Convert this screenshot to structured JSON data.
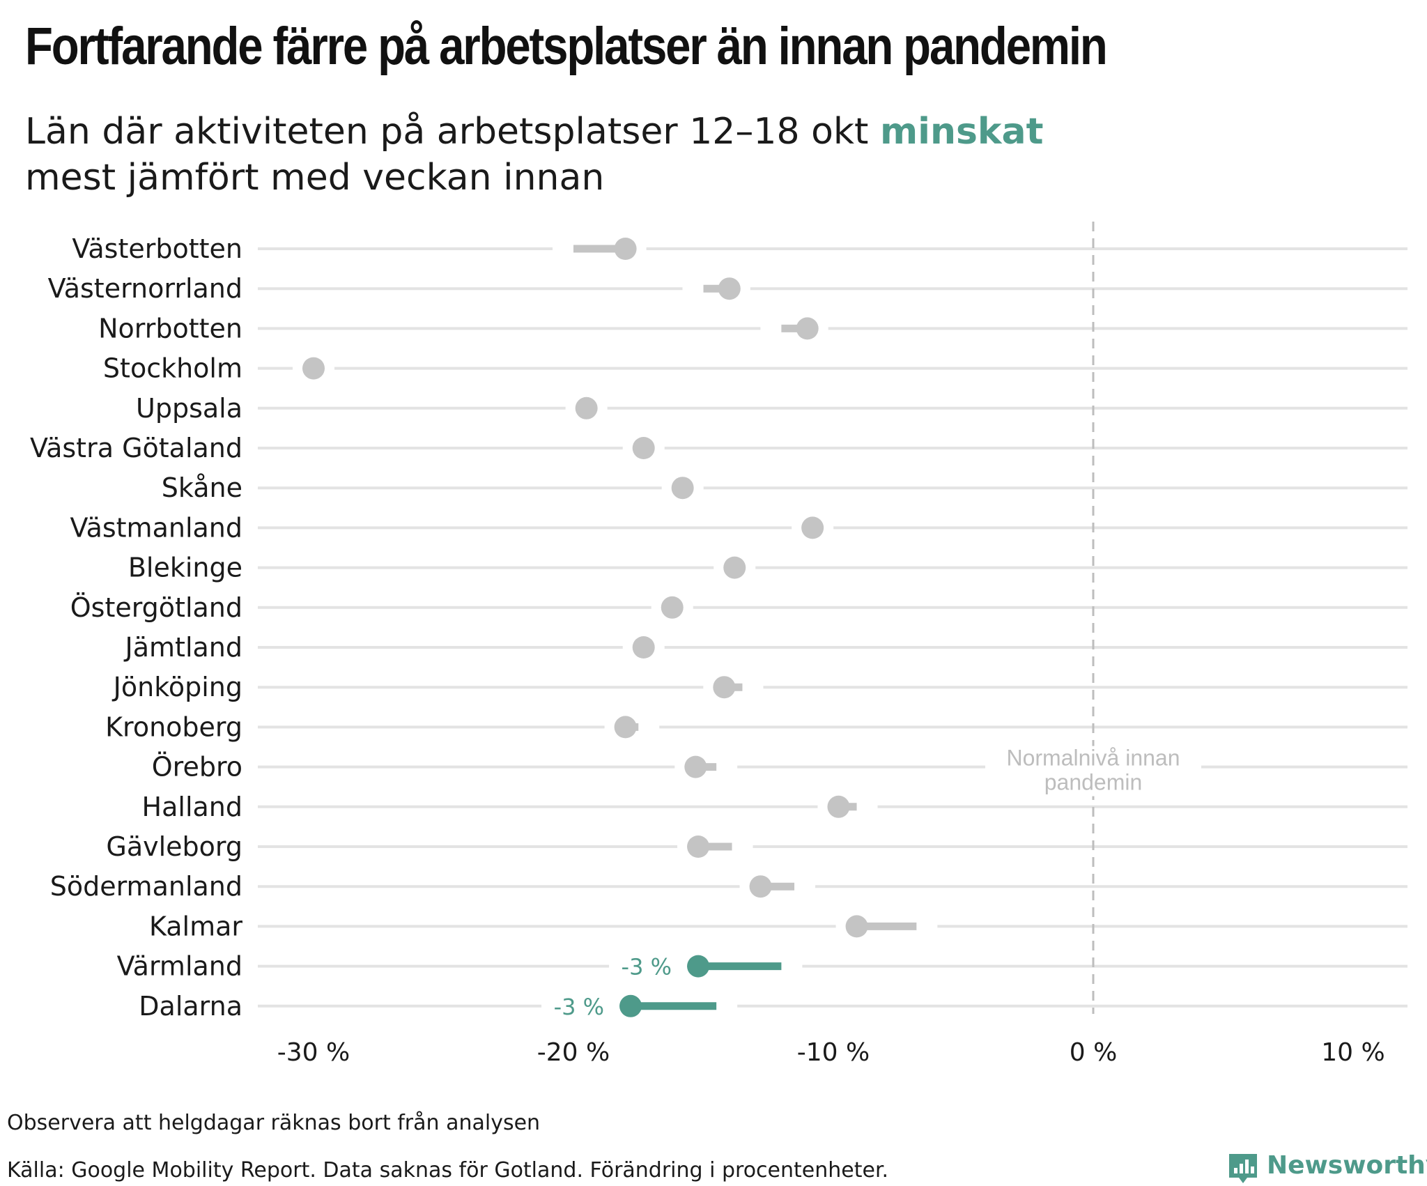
{
  "title": "Fortfarande färre på arbetsplatser än innan pandemin",
  "subtitle": {
    "line1_prefix": "Län där aktiviteten på arbetsplatser 12–18 okt ",
    "line1_highlight": "minskat",
    "line2": "mest jämfört med veckan innan"
  },
  "footnotes": {
    "note": "Observera att helgdagar räknas bort från analysen",
    "source": "Källa: Google Mobility Report. Data saknas för Gotland. Förändring i procentenheter."
  },
  "brand": {
    "name": "Newsworthy",
    "color": "#4e9a8a"
  },
  "chart_data": {
    "type": "dumbbell",
    "x_ticks": [
      -30,
      -20,
      -10,
      0,
      10
    ],
    "x_tick_labels": [
      "-30 %",
      "-20 %",
      "-10 %",
      "0 %",
      "10 %"
    ],
    "xlim": [
      -33,
      12
    ],
    "grid": true,
    "reference_line": {
      "x": 0,
      "label_line1": "Normalnivå innan",
      "label_line2": "pandemin"
    },
    "colors": {
      "highlight": "#4e9a8a",
      "default": "#c4c4c4",
      "grid": "#e3e3e3",
      "reference": "#bdbdbd"
    },
    "series": [
      {
        "name": "Västerbotten",
        "prev": -20,
        "current": -18,
        "highlight": false
      },
      {
        "name": "Västernorrland",
        "prev": -15,
        "current": -14,
        "highlight": false
      },
      {
        "name": "Norrbotten",
        "prev": -12,
        "current": -11,
        "highlight": false
      },
      {
        "name": "Stockholm",
        "prev": -30,
        "current": -30,
        "highlight": false
      },
      {
        "name": "Uppsala",
        "prev": -19.5,
        "current": -19.5,
        "highlight": false
      },
      {
        "name": "Västra Götaland",
        "prev": -17.3,
        "current": -17.3,
        "highlight": false
      },
      {
        "name": "Skåne",
        "prev": -15.8,
        "current": -15.8,
        "highlight": false
      },
      {
        "name": "Västmanland",
        "prev": -10.8,
        "current": -10.8,
        "highlight": false
      },
      {
        "name": "Blekinge",
        "prev": -13.8,
        "current": -13.8,
        "highlight": false
      },
      {
        "name": "Östergötland",
        "prev": -16.2,
        "current": -16.2,
        "highlight": false
      },
      {
        "name": "Jämtland",
        "prev": -17.3,
        "current": -17.3,
        "highlight": false
      },
      {
        "name": "Jönköping",
        "prev": -13.5,
        "current": -14.2,
        "highlight": false
      },
      {
        "name": "Kronoberg",
        "prev": -17.5,
        "current": -18,
        "highlight": false
      },
      {
        "name": "Örebro",
        "prev": -14.5,
        "current": -15.3,
        "highlight": false
      },
      {
        "name": "Halland",
        "prev": -9.1,
        "current": -9.8,
        "highlight": false
      },
      {
        "name": "Gävleborg",
        "prev": -13.9,
        "current": -15.2,
        "highlight": false
      },
      {
        "name": "Södermanland",
        "prev": -11.5,
        "current": -12.8,
        "highlight": false
      },
      {
        "name": "Kalmar",
        "prev": -6.8,
        "current": -9.1,
        "highlight": false
      },
      {
        "name": "Värmland",
        "prev": -12,
        "current": -15.2,
        "highlight": true,
        "label": "-3 %"
      },
      {
        "name": "Dalarna",
        "prev": -14.5,
        "current": -17.8,
        "highlight": true,
        "label": "-3 %"
      }
    ]
  }
}
